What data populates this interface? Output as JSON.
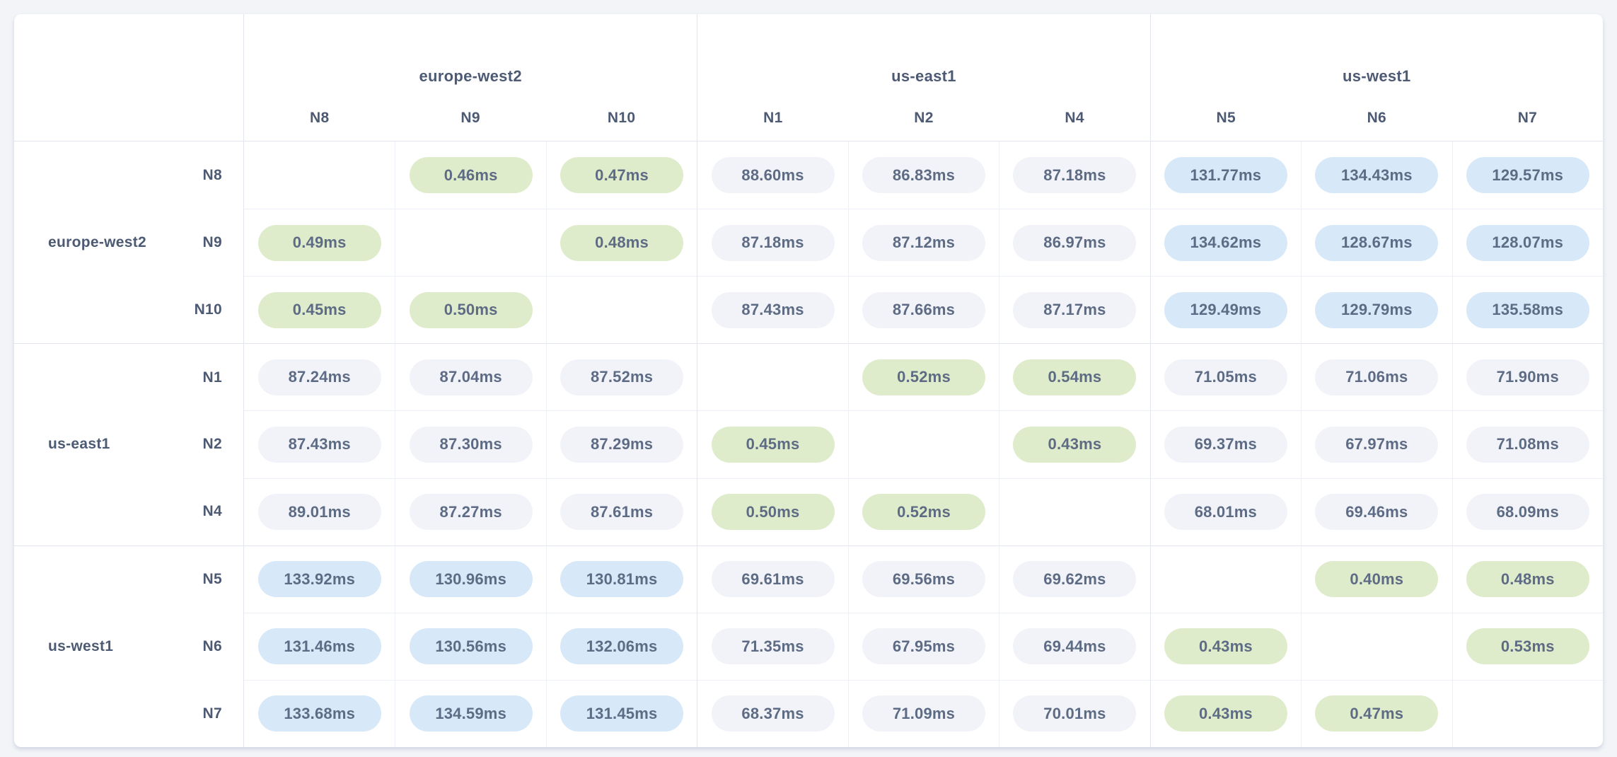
{
  "matrix": {
    "unit": "ms",
    "column_groups": [
      {
        "region": "europe-west2",
        "nodes": [
          "N8",
          "N9",
          "N10"
        ]
      },
      {
        "region": "us-east1",
        "nodes": [
          "N1",
          "N2",
          "N4"
        ]
      },
      {
        "region": "us-west1",
        "nodes": [
          "N5",
          "N6",
          "N7"
        ]
      }
    ],
    "row_groups": [
      {
        "region": "europe-west2",
        "nodes": [
          "N8",
          "N9",
          "N10"
        ]
      },
      {
        "region": "us-east1",
        "nodes": [
          "N1",
          "N2",
          "N4"
        ]
      },
      {
        "region": "us-west1",
        "nodes": [
          "N5",
          "N6",
          "N7"
        ]
      }
    ],
    "values": [
      [
        null,
        "0.46ms",
        "0.47ms",
        "88.60ms",
        "86.83ms",
        "87.18ms",
        "131.77ms",
        "134.43ms",
        "129.57ms"
      ],
      [
        "0.49ms",
        null,
        "0.48ms",
        "87.18ms",
        "87.12ms",
        "86.97ms",
        "134.62ms",
        "128.67ms",
        "128.07ms"
      ],
      [
        "0.45ms",
        "0.50ms",
        null,
        "87.43ms",
        "87.66ms",
        "87.17ms",
        "129.49ms",
        "129.79ms",
        "135.58ms"
      ],
      [
        "87.24ms",
        "87.04ms",
        "87.52ms",
        null,
        "0.52ms",
        "0.54ms",
        "71.05ms",
        "71.06ms",
        "71.90ms"
      ],
      [
        "87.43ms",
        "87.30ms",
        "87.29ms",
        "0.45ms",
        null,
        "0.43ms",
        "69.37ms",
        "67.97ms",
        "71.08ms"
      ],
      [
        "89.01ms",
        "87.27ms",
        "87.61ms",
        "0.50ms",
        "0.52ms",
        null,
        "68.01ms",
        "69.46ms",
        "68.09ms"
      ],
      [
        "133.92ms",
        "130.96ms",
        "130.81ms",
        "69.61ms",
        "69.56ms",
        "69.62ms",
        null,
        "0.40ms",
        "0.48ms"
      ],
      [
        "131.46ms",
        "130.56ms",
        "132.06ms",
        "71.35ms",
        "67.95ms",
        "69.44ms",
        "0.43ms",
        null,
        "0.53ms"
      ],
      [
        "133.68ms",
        "134.59ms",
        "131.45ms",
        "68.37ms",
        "71.09ms",
        "70.01ms",
        "0.43ms",
        "0.47ms",
        null
      ]
    ],
    "levels": [
      [
        null,
        "low",
        "low",
        "medium",
        "medium",
        "medium",
        "high",
        "high",
        "high"
      ],
      [
        "low",
        null,
        "low",
        "medium",
        "medium",
        "medium",
        "high",
        "high",
        "high"
      ],
      [
        "low",
        "low",
        null,
        "medium",
        "medium",
        "medium",
        "high",
        "high",
        "high"
      ],
      [
        "medium",
        "medium",
        "medium",
        null,
        "low",
        "low",
        "medium",
        "medium",
        "medium"
      ],
      [
        "medium",
        "medium",
        "medium",
        "low",
        null,
        "low",
        "medium",
        "medium",
        "medium"
      ],
      [
        "medium",
        "medium",
        "medium",
        "low",
        "low",
        null,
        "medium",
        "medium",
        "medium"
      ],
      [
        "high",
        "high",
        "high",
        "medium",
        "medium",
        "medium",
        null,
        "low",
        "low"
      ],
      [
        "high",
        "high",
        "high",
        "medium",
        "medium",
        "medium",
        "low",
        null,
        "low"
      ],
      [
        "high",
        "high",
        "high",
        "medium",
        "medium",
        "medium",
        "low",
        "low",
        null
      ]
    ],
    "colors": {
      "low": "#dfeccb",
      "medium": "#f1f3f8",
      "high": "#d7e8f8"
    }
  }
}
